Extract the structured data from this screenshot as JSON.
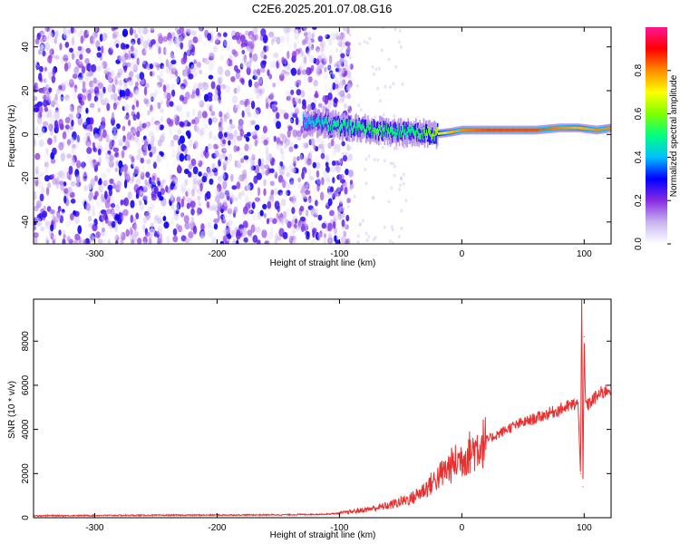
{
  "title": "C2E6.2025.201.07.08.G16",
  "chart_data": [
    {
      "type": "heatmap",
      "xlabel": "Height of straight line (km)",
      "ylabel": "Frequency (Hz)",
      "xlim": [
        -350,
        122
      ],
      "ylim": [
        -50,
        49
      ],
      "xticks": [
        -300,
        -200,
        -100,
        0,
        100
      ],
      "yticks": [
        -40,
        -20,
        0,
        20,
        40
      ],
      "colorbar": {
        "label": "Normalized spectral amplitude",
        "range": [
          0,
          1
        ],
        "ticks": [
          0.0,
          0.2,
          0.4,
          0.6,
          0.8
        ],
        "colormap": [
          "#ffffff",
          "#c8b4f0",
          "#8a2be2",
          "#0000ff",
          "#00bfff",
          "#00ff7f",
          "#7fff00",
          "#ffff00",
          "#ff8c00",
          "#ff0000",
          "#ff1493"
        ]
      },
      "signal_track": {
        "x": [
          -130,
          -115,
          -100,
          -85,
          -70,
          -55,
          -40,
          -25,
          -10,
          0,
          20,
          40,
          60,
          80,
          95,
          110,
          122
        ],
        "y": [
          6,
          5,
          4,
          3,
          2,
          1,
          1,
          0,
          1,
          2,
          2,
          2,
          2,
          3,
          3,
          2,
          3
        ],
        "amplitude": [
          0.4,
          0.45,
          0.5,
          0.5,
          0.55,
          0.5,
          0.5,
          0.6,
          0.75,
          0.8,
          0.85,
          0.85,
          0.85,
          0.8,
          0.75,
          0.8,
          0.8
        ]
      },
      "noise_region": {
        "x_from": -350,
        "x_to": -105,
        "amplitude": [
          0.0,
          0.3
        ]
      }
    },
    {
      "type": "line",
      "xlabel": "Height of straight line (km)",
      "ylabel": "SNR (10 * v/v)",
      "xlim": [
        -350,
        122
      ],
      "ylim": [
        0,
        9900
      ],
      "xticks": [
        -300,
        -200,
        -100,
        0,
        100
      ],
      "yticks": [
        0,
        2000,
        4000,
        6000,
        8000
      ],
      "color": "#e83030",
      "x": [
        -350,
        -300,
        -250,
        -200,
        -150,
        -110,
        -100,
        -80,
        -60,
        -40,
        -30,
        -20,
        -10,
        0,
        10,
        20,
        30,
        40,
        50,
        60,
        70,
        80,
        90,
        95,
        97,
        98,
        99,
        100,
        101,
        103,
        110,
        122
      ],
      "y": [
        90,
        100,
        110,
        120,
        130,
        160,
        200,
        350,
        550,
        900,
        1300,
        1800,
        2300,
        2700,
        3100,
        3500,
        3800,
        4100,
        4300,
        4500,
        4700,
        4900,
        5100,
        5200,
        2000,
        9900,
        1400,
        8200,
        5300,
        5100,
        5500,
        5900
      ]
    }
  ]
}
